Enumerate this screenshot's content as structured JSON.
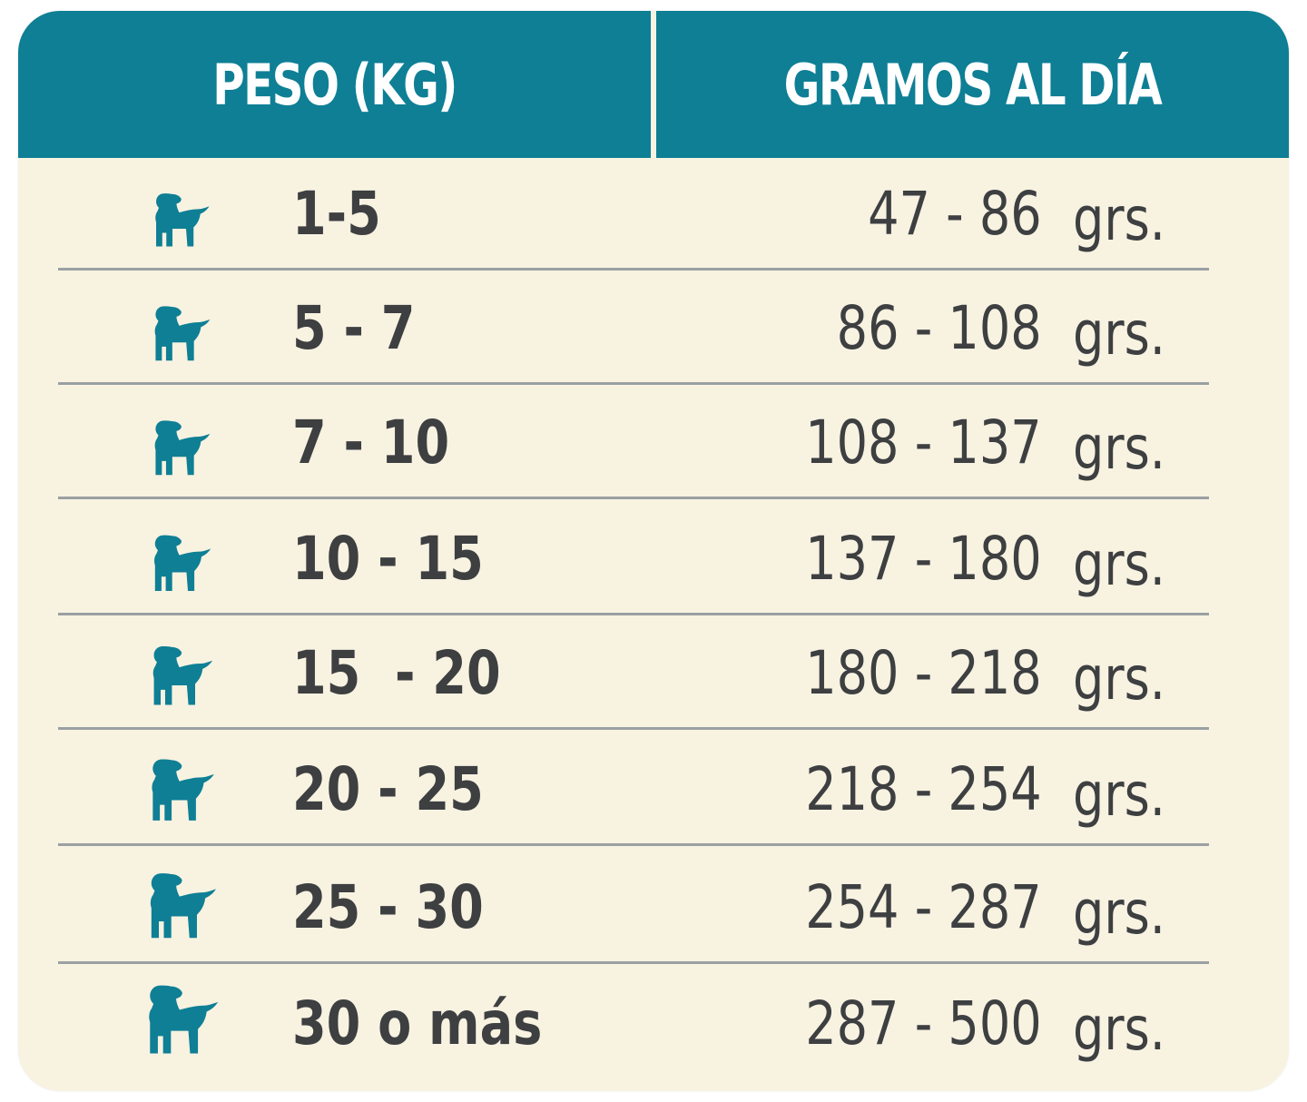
{
  "header": {
    "col1": "PESO (KG)",
    "col2": "GRAMOS AL DÍA"
  },
  "colors": {
    "header_bg": "#0e7f95",
    "body_bg": "#f8f2e1",
    "dog_icon": "#0e7f95",
    "text": "#3d3f41"
  },
  "rows": [
    {
      "icon": "puppy-icon",
      "weight": "1-5",
      "grams": "47 - 86",
      "unit": "grs."
    },
    {
      "icon": "puppy-icon",
      "weight": "5 - 7",
      "grams": "86 - 108",
      "unit": "grs."
    },
    {
      "icon": "puppy-icon",
      "weight": "7 - 10",
      "grams": "108 - 137",
      "unit": "grs."
    },
    {
      "icon": "puppy-icon",
      "weight": "10 - 15",
      "grams": "137 - 180",
      "unit": "grs."
    },
    {
      "icon": "puppy-icon",
      "weight": "15  - 20",
      "grams": "180 - 218",
      "unit": "grs."
    },
    {
      "icon": "puppy-icon",
      "weight": "20 - 25",
      "grams": "218 - 254",
      "unit": "grs."
    },
    {
      "icon": "puppy-icon",
      "weight": "25 - 30",
      "grams": "254 - 287",
      "unit": "grs."
    },
    {
      "icon": "puppy-icon",
      "weight": "30 o más",
      "grams": "287 - 500",
      "unit": "grs."
    }
  ]
}
